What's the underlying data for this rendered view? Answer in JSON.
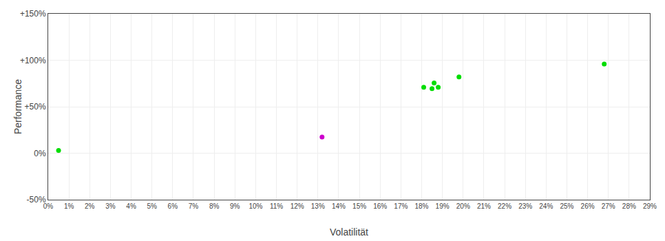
{
  "chart_data": {
    "type": "scatter",
    "xlabel": "Volatilität",
    "ylabel": "Performance",
    "series": [
      {
        "color": "#00dd00",
        "x": [
          0.005,
          0.181,
          0.185,
          0.188,
          0.186,
          0.198,
          0.268
        ],
        "values": [
          0.03,
          0.71,
          0.695,
          0.71,
          0.755,
          0.82,
          0.96
        ]
      },
      {
        "color": "#cc00cc",
        "x": [
          0.132
        ],
        "values": [
          0.175
        ]
      }
    ],
    "xlim": [
      0,
      0.29
    ],
    "xticks": [
      {
        "value": 0,
        "label": "0%"
      },
      {
        "value": 0.01,
        "label": "1%"
      },
      {
        "value": 0.02,
        "label": "2%"
      },
      {
        "value": 0.03,
        "label": "3%"
      },
      {
        "value": 0.04,
        "label": "4%"
      },
      {
        "value": 0.05,
        "label": "5%"
      },
      {
        "value": 0.06,
        "label": "6%"
      },
      {
        "value": 0.07,
        "label": "7%"
      },
      {
        "value": 0.08,
        "label": "8%"
      },
      {
        "value": 0.09,
        "label": "9%"
      },
      {
        "value": 0.1,
        "label": "10%"
      },
      {
        "value": 0.11,
        "label": "11%"
      },
      {
        "value": 0.12,
        "label": "12%"
      },
      {
        "value": 0.13,
        "label": "13%"
      },
      {
        "value": 0.14,
        "label": "14%"
      },
      {
        "value": 0.15,
        "label": "15%"
      },
      {
        "value": 0.16,
        "label": "16%"
      },
      {
        "value": 0.17,
        "label": "17%"
      },
      {
        "value": 0.18,
        "label": "18%"
      },
      {
        "value": 0.19,
        "label": "19%"
      },
      {
        "value": 0.2,
        "label": "20%"
      },
      {
        "value": 0.21,
        "label": "21%"
      },
      {
        "value": 0.22,
        "label": "22%"
      },
      {
        "value": 0.23,
        "label": "23%"
      },
      {
        "value": 0.24,
        "label": "24%"
      },
      {
        "value": 0.25,
        "label": "25%"
      },
      {
        "value": 0.26,
        "label": "26%"
      },
      {
        "value": 0.27,
        "label": "27%"
      },
      {
        "value": 0.28,
        "label": "28%"
      },
      {
        "value": 0.29,
        "label": "29%"
      }
    ],
    "ylim": [
      -0.5,
      1.5
    ],
    "yticks": [
      {
        "value": -0.5,
        "label": "-50%"
      },
      {
        "value": 0,
        "label": "0%"
      },
      {
        "value": 0.5,
        "label": "+50%"
      },
      {
        "value": 1,
        "label": "+100%"
      },
      {
        "value": 1.5,
        "label": "+150%"
      }
    ],
    "grid": true
  }
}
